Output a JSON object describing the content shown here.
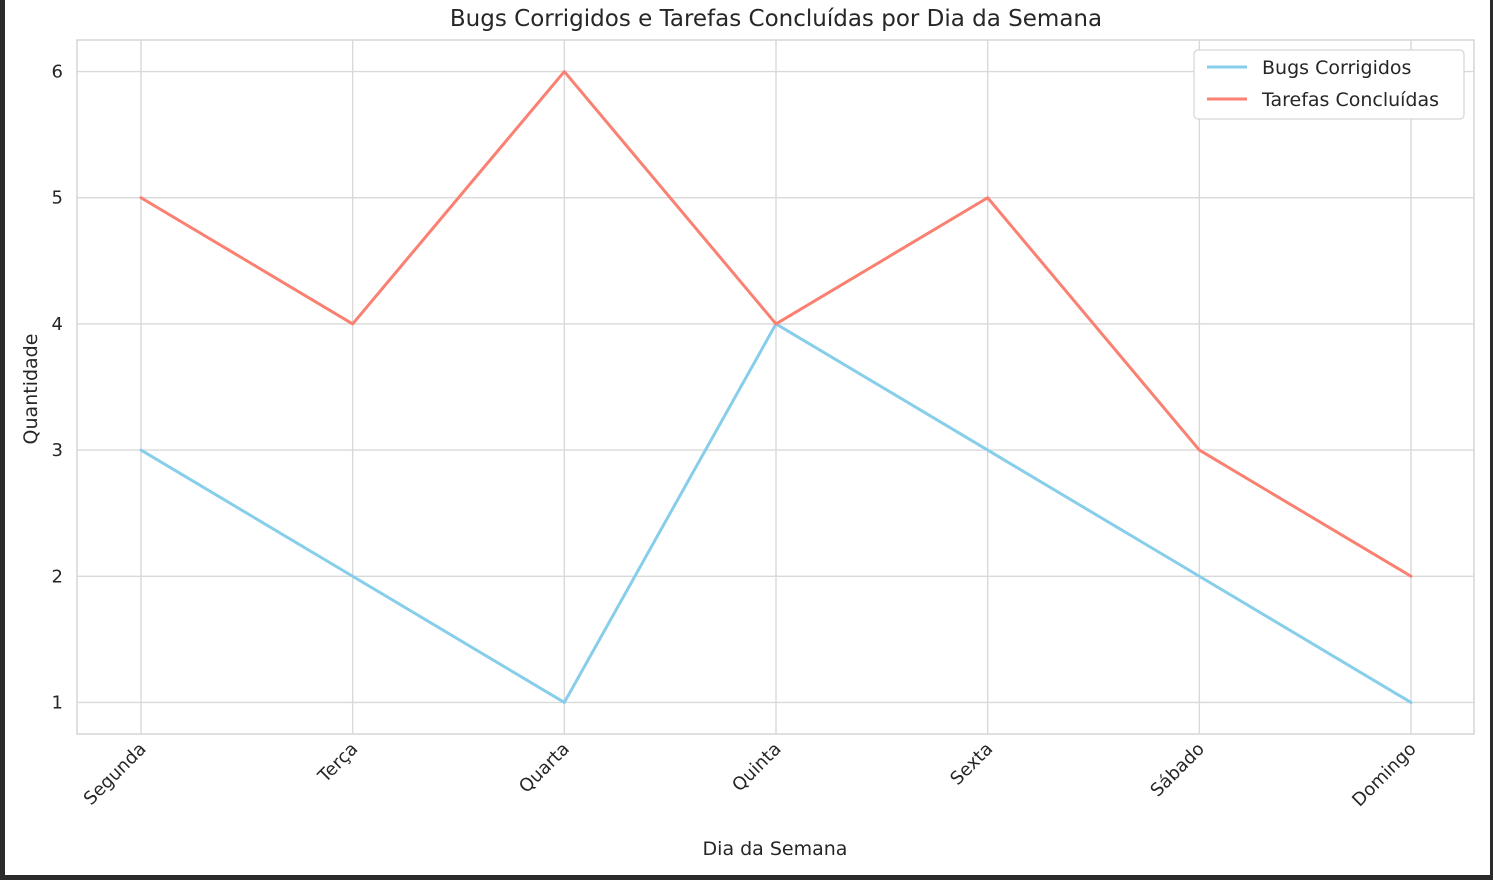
{
  "chart_data": {
    "type": "line",
    "title": "Bugs Corrigidos e Tarefas Concluídas por Dia da Semana",
    "xlabel": "Dia da Semana",
    "ylabel": "Quantidade",
    "categories": [
      "Segunda",
      "Terça",
      "Quarta",
      "Quinta",
      "Sexta",
      "Sábado",
      "Domingo"
    ],
    "series": [
      {
        "name": "Bugs Corrigidos",
        "color": "#87ceeb",
        "values": [
          3,
          2,
          1,
          4,
          3,
          2,
          1
        ]
      },
      {
        "name": "Tarefas Concluídas",
        "color": "#fa8072",
        "values": [
          5,
          4,
          6,
          4,
          5,
          3,
          2
        ]
      }
    ],
    "yticks": [
      1,
      2,
      3,
      4,
      5,
      6
    ],
    "ylim": [
      0.75,
      6.25
    ],
    "grid": true,
    "legend": "top-right"
  }
}
